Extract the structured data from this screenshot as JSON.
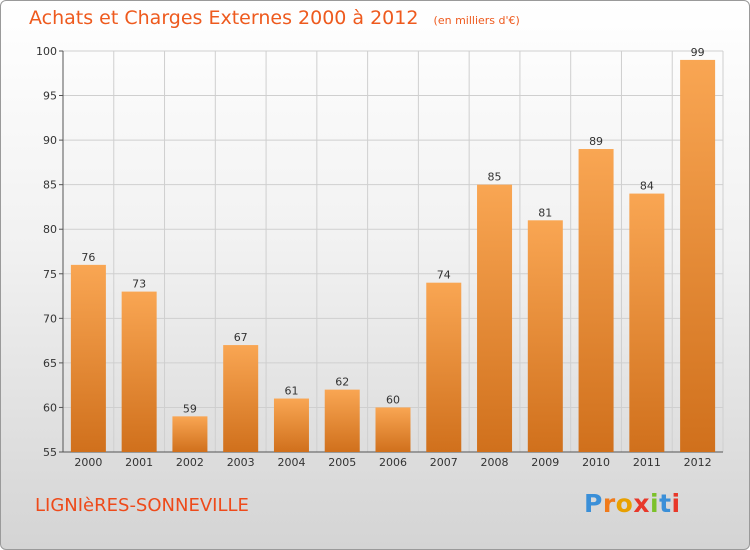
{
  "header": {
    "title": "Achats et Charges Externes 2000 à 2012",
    "subtitle": "(en milliers d'€)"
  },
  "footer": {
    "place_name": "LIGNIèRES-SONNEVILLE",
    "logo_text": "Proxiti",
    "logo_colors": [
      "#3a8fd8",
      "#f07a1a",
      "#e8a000",
      "#e8382a",
      "#7cc12a",
      "#3a8fd8",
      "#e8382a"
    ]
  },
  "colors": {
    "bar_light": "#f9a653",
    "bar_dark": "#d0701c",
    "title": "#ee5a1e",
    "grid": "#cfcfcf"
  },
  "chart_data": {
    "type": "bar",
    "title": "Achats et Charges Externes 2000 à 2012",
    "subtitle": "(en milliers d'€)",
    "categories": [
      "2000",
      "2001",
      "2002",
      "2003",
      "2004",
      "2005",
      "2006",
      "2007",
      "2008",
      "2009",
      "2010",
      "2011",
      "2012"
    ],
    "values": [
      76,
      73,
      59,
      67,
      61,
      62,
      60,
      74,
      85,
      81,
      89,
      84,
      99
    ],
    "ylim": [
      55,
      100
    ],
    "yticks": [
      55,
      60,
      65,
      70,
      75,
      80,
      85,
      90,
      95,
      100
    ],
    "grid": true,
    "legend": "none"
  }
}
